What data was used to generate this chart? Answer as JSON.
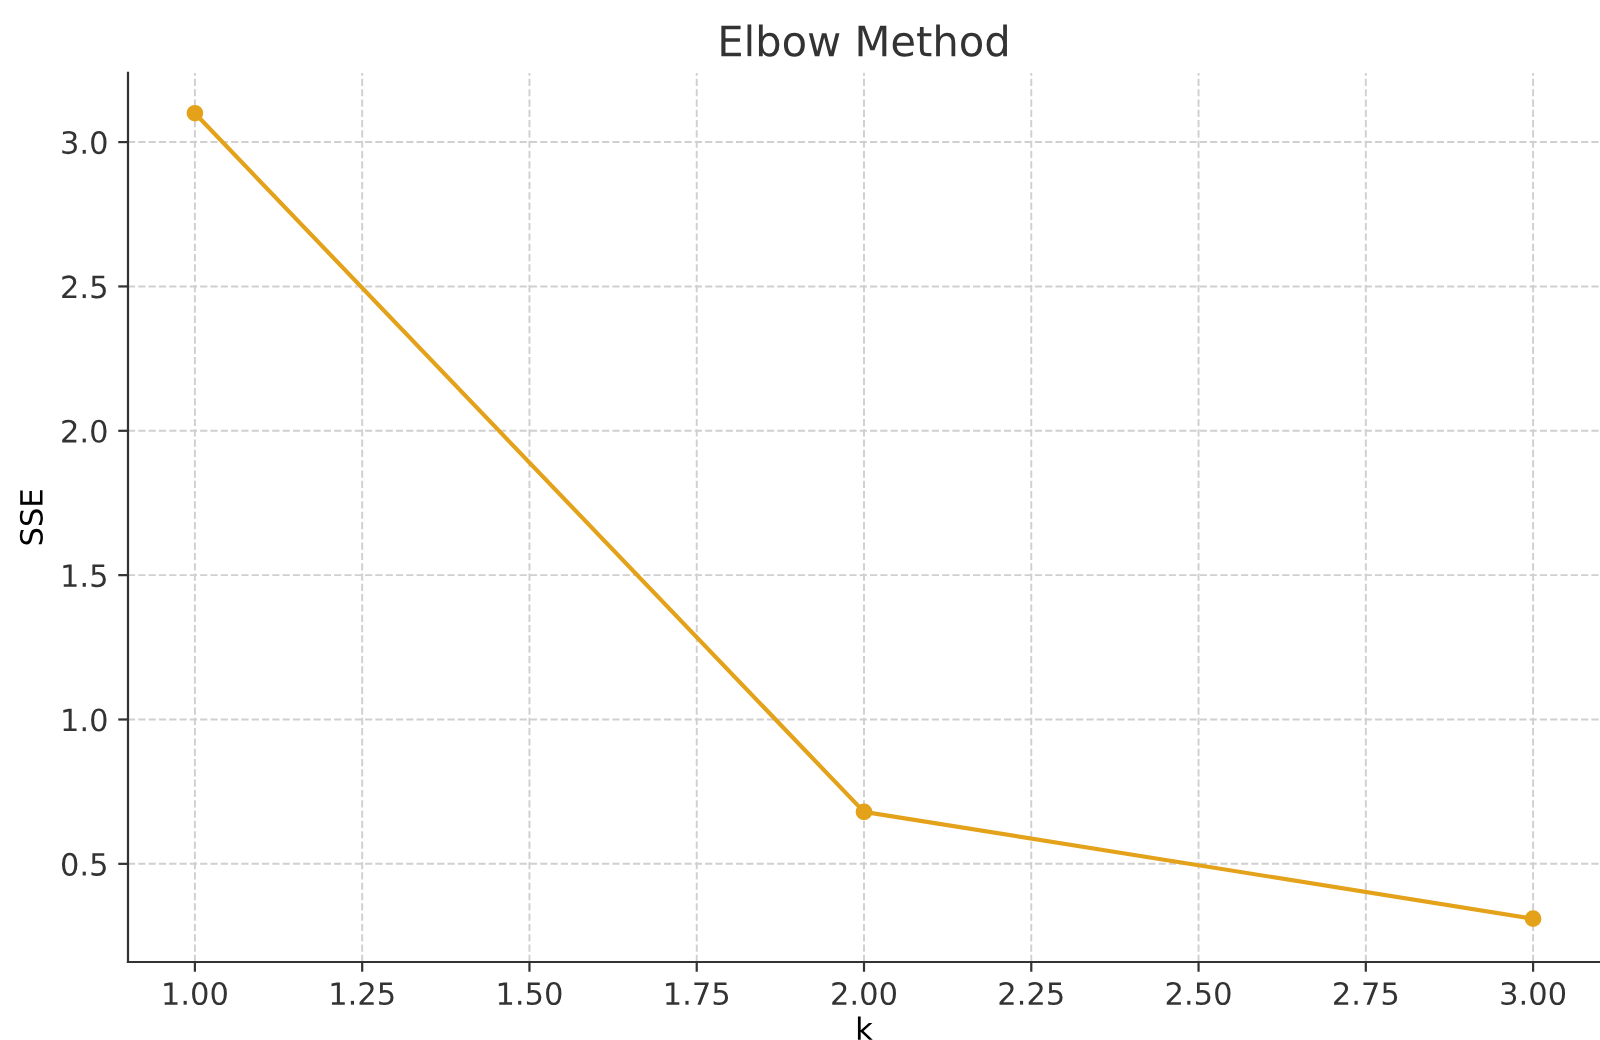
{
  "chart_data": {
    "type": "line",
    "title": "Elbow Method",
    "xlabel": "k",
    "ylabel": "SSE",
    "x": [
      1,
      2,
      3
    ],
    "series": [
      {
        "color": "#e3a21a",
        "values": [
          3.1,
          0.68,
          0.31
        ]
      }
    ],
    "marker": "circle",
    "line_style": "solid",
    "grid": true,
    "xlim": [
      0.9,
      3.1
    ],
    "xticks": [
      {
        "value": 1,
        "label": "1.00"
      },
      {
        "value": 1.25,
        "label": "1.25"
      },
      {
        "value": 1.5,
        "label": "1.50"
      },
      {
        "value": 1.75,
        "label": "1.75"
      },
      {
        "value": 2,
        "label": "2.00"
      },
      {
        "value": 2.25,
        "label": "2.25"
      },
      {
        "value": 2.5,
        "label": "2.50"
      },
      {
        "value": 2.75,
        "label": "2.75"
      },
      {
        "value": 3,
        "label": "3.00"
      }
    ],
    "ylim": [
      0.16,
      3.24
    ],
    "yticks": [
      {
        "value": 0.5,
        "label": "0.5"
      },
      {
        "value": 1,
        "label": "1.0"
      },
      {
        "value": 1.5,
        "label": "1.5"
      },
      {
        "value": 2,
        "label": "2.0"
      },
      {
        "value": 2.5,
        "label": "2.5"
      },
      {
        "value": 3,
        "label": "3.0"
      }
    ]
  }
}
